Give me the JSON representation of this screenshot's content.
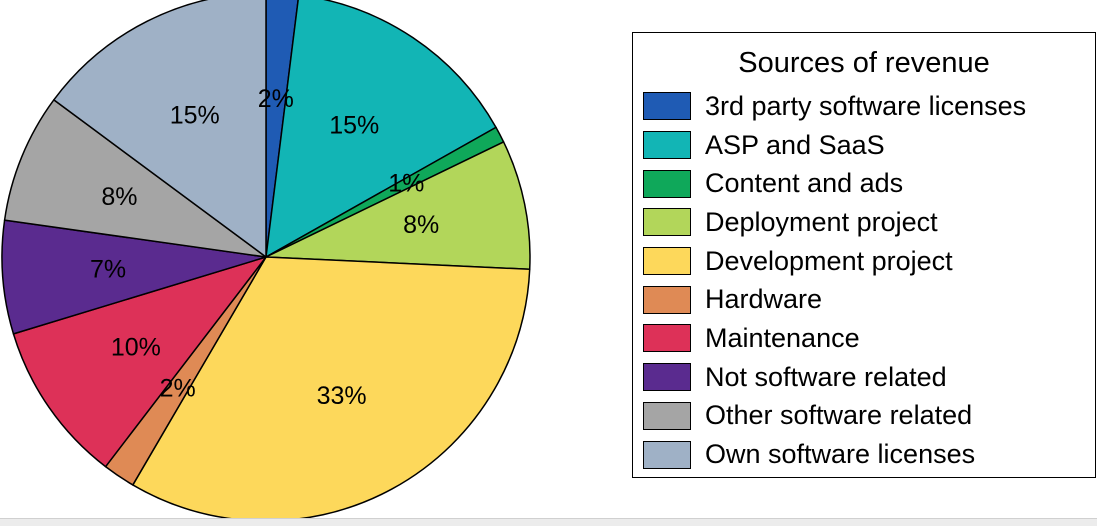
{
  "chart_data": {
    "type": "pie",
    "legend_title": "Sources of revenue",
    "legend_placement": "right",
    "start_angle_deg": 0,
    "direction": "clockwise",
    "slices": [
      {
        "name": "3rd party software licenses",
        "value": 2,
        "label": "2%",
        "color": "#1f5bb4"
      },
      {
        "name": "ASP and SaaS",
        "value": 15,
        "label": "15%",
        "color": "#12b5b5"
      },
      {
        "name": "Content and ads",
        "value": 1,
        "label": "1%",
        "color": "#0fa85a"
      },
      {
        "name": "Deployment project",
        "value": 8,
        "label": "8%",
        "color": "#b2d65a"
      },
      {
        "name": "Development project",
        "value": 33,
        "label": "33%",
        "color": "#fdd85b"
      },
      {
        "name": "Hardware",
        "value": 2,
        "label": "2%",
        "color": "#df8a55"
      },
      {
        "name": "Maintenance",
        "value": 10,
        "label": "10%",
        "color": "#dd3158"
      },
      {
        "name": "Not software related",
        "value": 7,
        "label": "7%",
        "color": "#5a2b8f"
      },
      {
        "name": "Other software related",
        "value": 8,
        "label": "8%",
        "color": "#a5a5a5"
      },
      {
        "name": "Own software licenses",
        "value": 15,
        "label": "15%",
        "color": "#9fb1c6"
      }
    ]
  }
}
